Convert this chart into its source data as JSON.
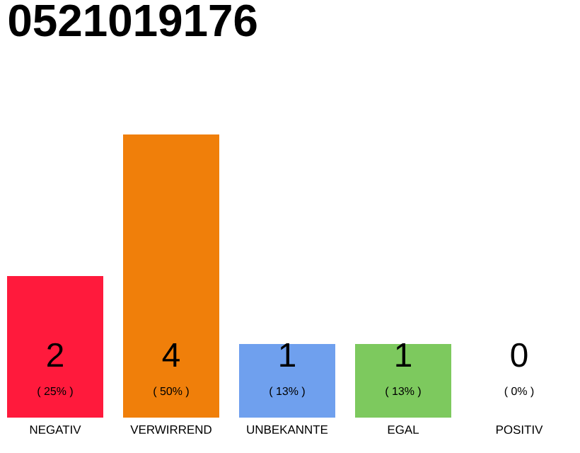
{
  "chart_data": {
    "type": "bar",
    "title": "0521019176",
    "categories": [
      "NEGATIV",
      "VERWIRREND",
      "UNBEKANNTE",
      "EGAL",
      "POSITIV"
    ],
    "values": [
      25,
      50,
      13,
      13,
      0
    ],
    "colors": [
      "#ff1a3c",
      "#f07f0a",
      "#6fa0ee",
      "#7dc95e",
      "#d0d0d0"
    ],
    "value_labels": [
      "( 25% )",
      "( 50% )",
      "( 13% )",
      "( 13% )",
      "( 0% )"
    ],
    "annotations": [
      "2",
      "4",
      "1",
      "1",
      "0"
    ],
    "ylim": [
      0,
      50
    ]
  }
}
